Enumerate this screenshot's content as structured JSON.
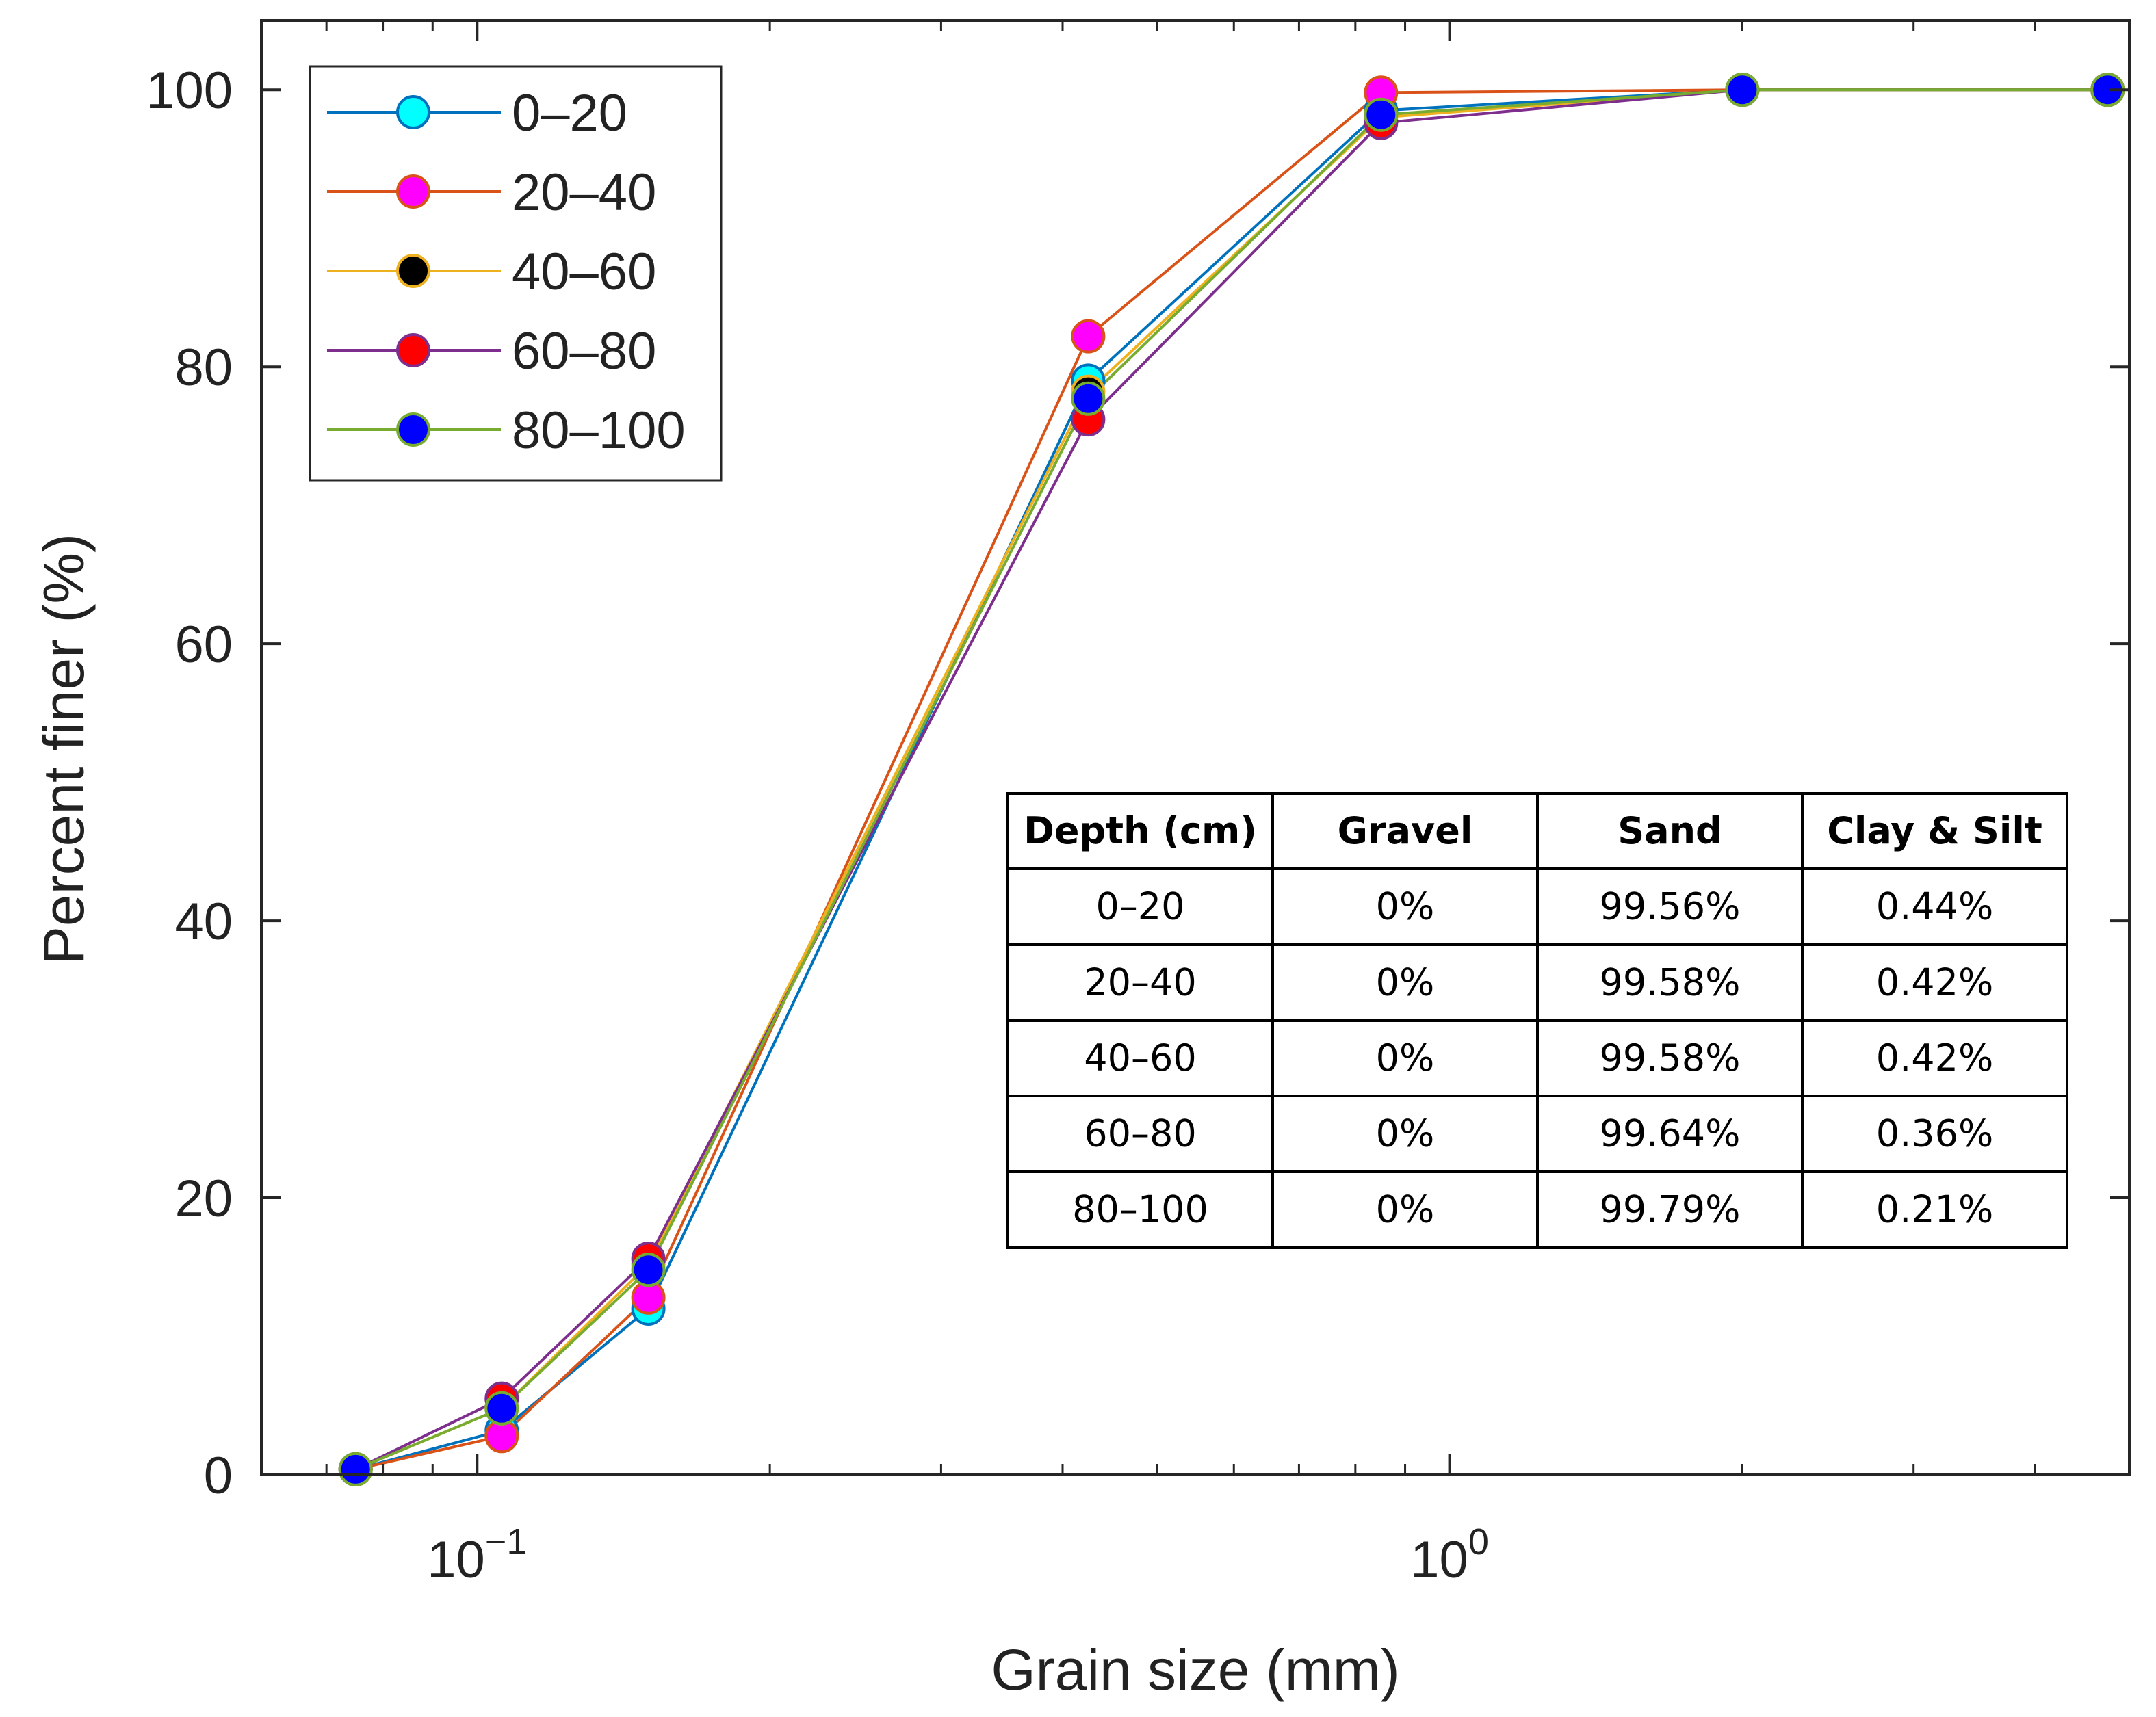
{
  "chart_data": {
    "type": "line",
    "title": "",
    "xlabel": "Grain size (mm)",
    "ylabel": "Percent finer (%)",
    "xscale": "log",
    "xlim": [
      0.06,
      5.0
    ],
    "ylim": [
      0,
      105
    ],
    "grid": false,
    "legend_position": "top-left",
    "x": [
      0.075,
      0.106,
      0.15,
      0.425,
      0.85,
      2.0,
      4.75
    ],
    "y_ticks": [
      0,
      20,
      40,
      60,
      80,
      100
    ],
    "y_tick_labels": [
      "0",
      "20",
      "40",
      "60",
      "80",
      "100"
    ],
    "x_major_ticks": [
      0.1,
      1.0
    ],
    "x_major_tick_bases": [
      "10",
      "10"
    ],
    "x_major_tick_exponents": [
      "−1",
      "0"
    ],
    "x_minor_ticks": [
      0.07,
      0.08,
      0.09,
      0.2,
      0.3,
      0.4,
      0.5,
      0.6,
      0.7,
      0.8,
      0.9,
      2,
      3,
      4
    ],
    "series": [
      {
        "name": "0–20",
        "line_color": "#0072bd",
        "marker_color": "#00ffff",
        "values": [
          0.4,
          3.2,
          12.0,
          79.0,
          98.5,
          100,
          100
        ]
      },
      {
        "name": "20–40",
        "line_color": "#d95319",
        "marker_color": "#ff00ff",
        "values": [
          0.4,
          2.8,
          12.8,
          82.2,
          99.8,
          100,
          100
        ]
      },
      {
        "name": "40–60",
        "line_color": "#edb120",
        "marker_color": "#000000",
        "values": [
          0.4,
          4.8,
          15.2,
          78.2,
          98.0,
          100,
          100
        ]
      },
      {
        "name": "60–80",
        "line_color": "#7e2f8e",
        "marker_color": "#ff0000",
        "values": [
          0.4,
          5.5,
          15.6,
          76.2,
          97.6,
          100,
          100
        ]
      },
      {
        "name": "80–100",
        "line_color": "#77ac30",
        "marker_color": "#0000ff",
        "values": [
          0.4,
          4.8,
          14.8,
          77.7,
          98.2,
          100,
          100
        ]
      }
    ],
    "table": {
      "headers": [
        "Depth (cm)",
        "Gravel",
        "Sand",
        "Clay & Silt"
      ],
      "rows": [
        [
          "0–20",
          "0%",
          "99.56%",
          "0.44%"
        ],
        [
          "20–40",
          "0%",
          "99.58%",
          "0.42%"
        ],
        [
          "40–60",
          "0%",
          "99.58%",
          "0.42%"
        ],
        [
          "60–80",
          "0%",
          "99.64%",
          "0.36%"
        ],
        [
          "80–100",
          "0%",
          "99.79%",
          "0.21%"
        ]
      ]
    }
  }
}
